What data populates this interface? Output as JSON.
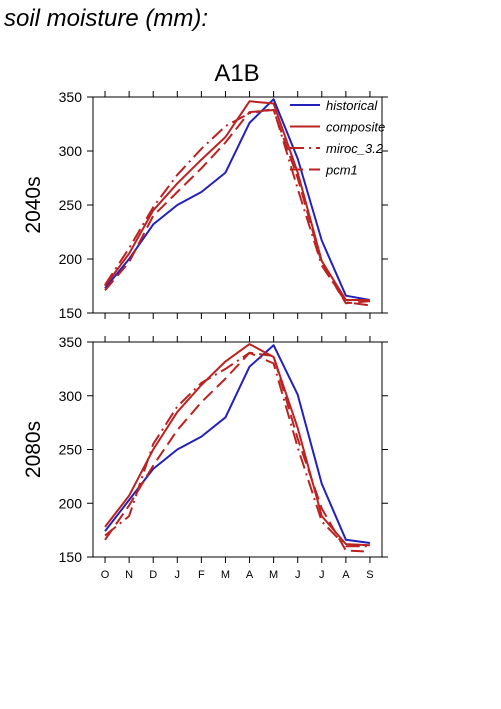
{
  "figure": {
    "title": "soil moisture (mm):",
    "scenario": "A1B"
  },
  "legend": [
    "historical",
    "composite",
    "miroc_3.2",
    "pcm1"
  ],
  "colors": {
    "historical": "#2222bb",
    "composite": "#bb2222",
    "miroc_3.2": "#bb2222",
    "pcm1": "#bb2222"
  },
  "chart_data": [
    {
      "type": "line",
      "row_label": "2040s",
      "categories": [
        "O",
        "N",
        "D",
        "J",
        "F",
        "M",
        "A",
        "M",
        "J",
        "J",
        "A",
        "S"
      ],
      "ylim": [
        150,
        350
      ],
      "yticks": [
        150,
        200,
        250,
        300,
        350
      ],
      "series": [
        {
          "name": "historical",
          "values": [
            173,
            200,
            232,
            250,
            262,
            280,
            326,
            348,
            293,
            217,
            166,
            162
          ]
        },
        {
          "name": "composite",
          "values": [
            175,
            205,
            245,
            270,
            292,
            313,
            346,
            344,
            280,
            198,
            162,
            162
          ]
        },
        {
          "name": "miroc_3.2",
          "values": [
            176,
            210,
            248,
            278,
            302,
            323,
            335,
            339,
            265,
            194,
            160,
            157
          ]
        },
        {
          "name": "pcm1",
          "values": [
            171,
            197,
            240,
            262,
            284,
            308,
            336,
            338,
            275,
            196,
            159,
            161
          ]
        }
      ]
    },
    {
      "type": "line",
      "row_label": "2080s",
      "categories": [
        "O",
        "N",
        "D",
        "J",
        "F",
        "M",
        "A",
        "M",
        "J",
        "J",
        "A",
        "S"
      ],
      "ylim": [
        150,
        350
      ],
      "yticks": [
        150,
        200,
        250,
        300,
        350
      ],
      "series": [
        {
          "name": "historical",
          "values": [
            174,
            203,
            232,
            250,
            262,
            280,
            327,
            347,
            301,
            218,
            166,
            163
          ]
        },
        {
          "name": "composite",
          "values": [
            178,
            207,
            250,
            285,
            310,
            332,
            348,
            336,
            270,
            188,
            162,
            161
          ]
        },
        {
          "name": "miroc_3.2",
          "values": [
            170,
            188,
            255,
            290,
            312,
            325,
            340,
            330,
            252,
            183,
            160,
            160
          ]
        },
        {
          "name": "pcm1",
          "values": [
            166,
            198,
            235,
            268,
            294,
            316,
            340,
            337,
            260,
            195,
            156,
            155
          ]
        }
      ]
    }
  ]
}
